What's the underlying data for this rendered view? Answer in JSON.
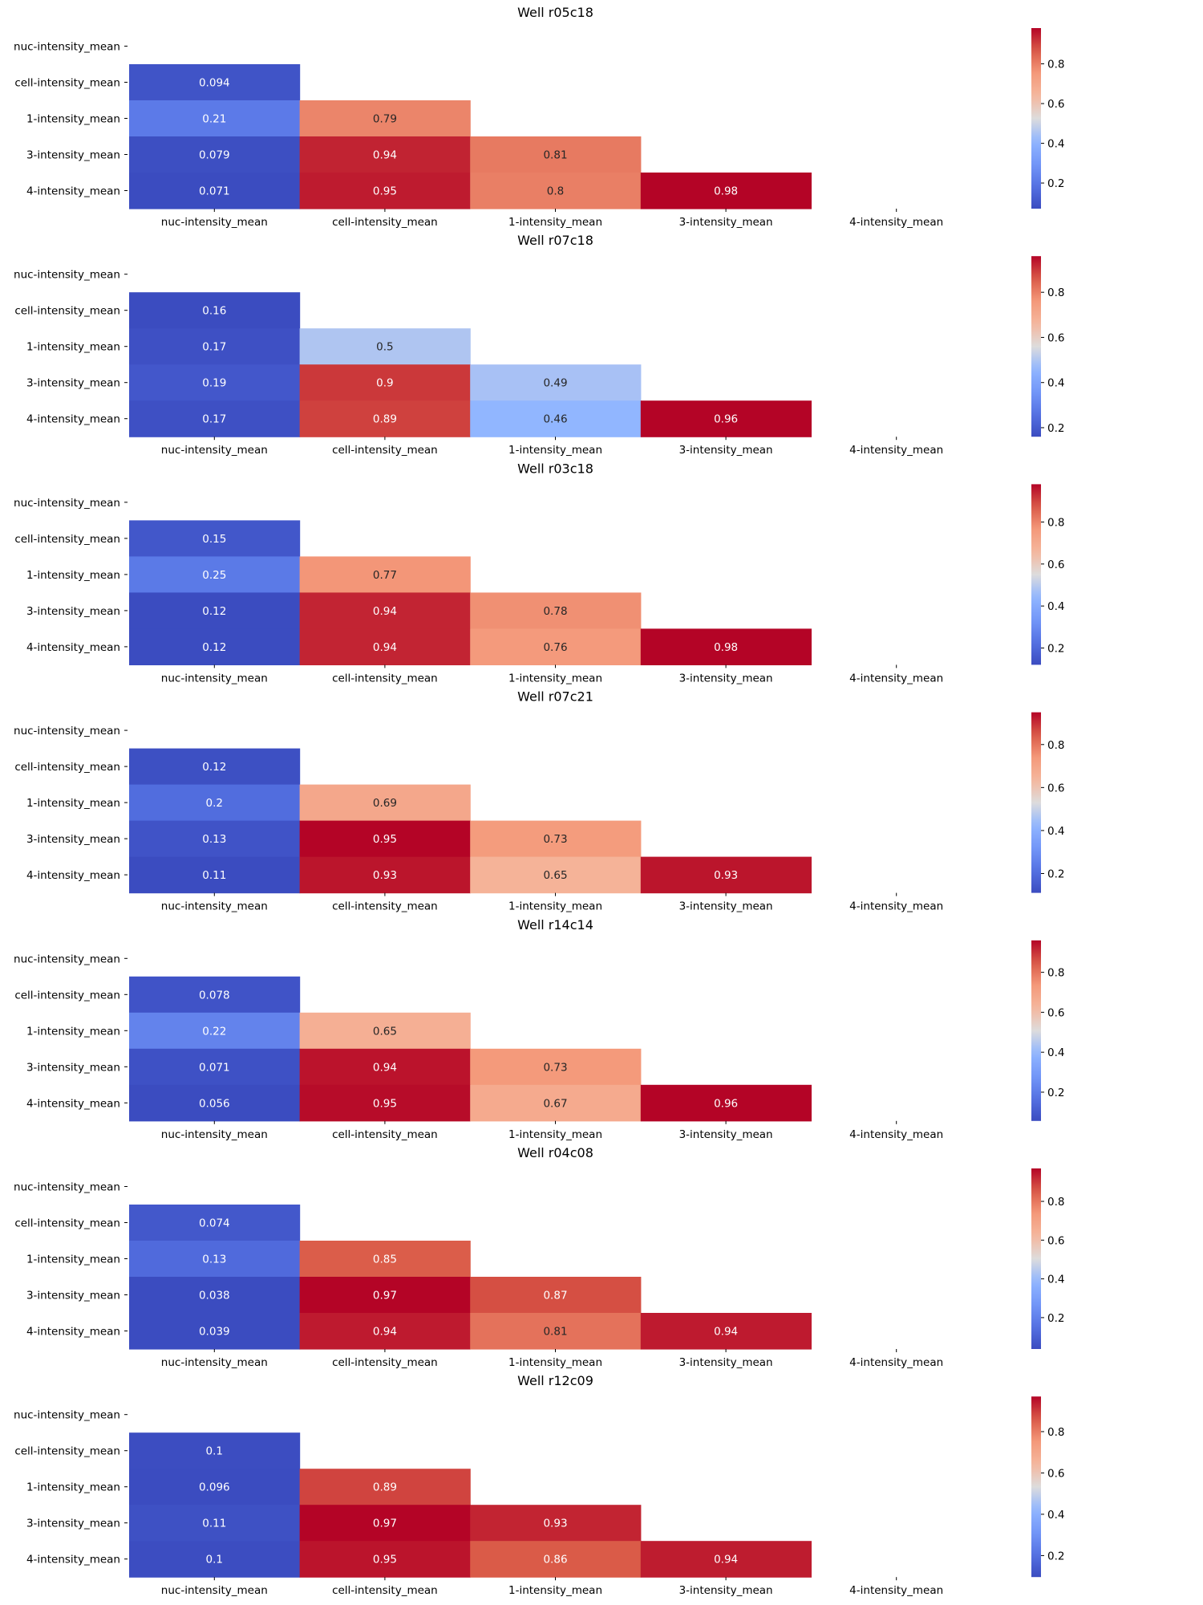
{
  "chart_data": [
    {
      "type": "heatmap",
      "title": "Well r05c18",
      "row_labels": [
        "nuc-intensity_mean",
        "cell-intensity_mean",
        "1-intensity_mean",
        "3-intensity_mean",
        "4-intensity_mean"
      ],
      "col_labels": [
        "nuc-intensity_mean",
        "cell-intensity_mean",
        "1-intensity_mean",
        "3-intensity_mean",
        "4-intensity_mean"
      ],
      "values": [
        [
          null,
          null,
          null,
          null,
          null
        ],
        [
          0.094,
          null,
          null,
          null,
          null
        ],
        [
          0.21,
          0.79,
          null,
          null,
          null
        ],
        [
          0.079,
          0.94,
          0.81,
          null,
          null
        ],
        [
          0.071,
          0.95,
          0.8,
          0.98,
          null
        ]
      ],
      "annotations": [
        [
          null,
          null,
          null,
          null,
          null
        ],
        [
          "0.094",
          null,
          null,
          null,
          null
        ],
        [
          "0.21",
          "0.79",
          null,
          null,
          null
        ],
        [
          "0.079",
          "0.94",
          "0.81",
          null,
          null
        ],
        [
          "0.071",
          "0.95",
          "0.8",
          "0.98",
          null
        ]
      ],
      "colorbar": {
        "colormap": "coolwarm",
        "range": [
          0.071,
          0.98
        ],
        "ticks": [
          0.2,
          0.4,
          0.6,
          0.8
        ],
        "tick_labels": [
          "0.2",
          "0.4",
          "0.6",
          "0.8"
        ]
      }
    },
    {
      "type": "heatmap",
      "title": "Well r07c18",
      "row_labels": [
        "nuc-intensity_mean",
        "cell-intensity_mean",
        "1-intensity_mean",
        "3-intensity_mean",
        "4-intensity_mean"
      ],
      "col_labels": [
        "nuc-intensity_mean",
        "cell-intensity_mean",
        "1-intensity_mean",
        "3-intensity_mean",
        "4-intensity_mean"
      ],
      "values": [
        [
          null,
          null,
          null,
          null,
          null
        ],
        [
          0.16,
          null,
          null,
          null,
          null
        ],
        [
          0.17,
          0.5,
          null,
          null,
          null
        ],
        [
          0.19,
          0.9,
          0.49,
          null,
          null
        ],
        [
          0.17,
          0.89,
          0.46,
          0.96,
          null
        ]
      ],
      "annotations": [
        [
          null,
          null,
          null,
          null,
          null
        ],
        [
          "0.16",
          null,
          null,
          null,
          null
        ],
        [
          "0.17",
          "0.5",
          null,
          null,
          null
        ],
        [
          "0.19",
          "0.9",
          "0.49",
          null,
          null
        ],
        [
          "0.17",
          "0.89",
          "0.46",
          "0.96",
          null
        ]
      ],
      "colorbar": {
        "colormap": "coolwarm",
        "range": [
          0.16,
          0.96
        ],
        "ticks": [
          0.2,
          0.4,
          0.6,
          0.8
        ],
        "tick_labels": [
          "0.2",
          "0.4",
          "0.6",
          "0.8"
        ]
      }
    },
    {
      "type": "heatmap",
      "title": "Well r03c18",
      "row_labels": [
        "nuc-intensity_mean",
        "cell-intensity_mean",
        "1-intensity_mean",
        "3-intensity_mean",
        "4-intensity_mean"
      ],
      "col_labels": [
        "nuc-intensity_mean",
        "cell-intensity_mean",
        "1-intensity_mean",
        "3-intensity_mean",
        "4-intensity_mean"
      ],
      "values": [
        [
          null,
          null,
          null,
          null,
          null
        ],
        [
          0.15,
          null,
          null,
          null,
          null
        ],
        [
          0.25,
          0.77,
          null,
          null,
          null
        ],
        [
          0.12,
          0.94,
          0.78,
          null,
          null
        ],
        [
          0.12,
          0.94,
          0.76,
          0.98,
          null
        ]
      ],
      "annotations": [
        [
          null,
          null,
          null,
          null,
          null
        ],
        [
          "0.15",
          null,
          null,
          null,
          null
        ],
        [
          "0.25",
          "0.77",
          null,
          null,
          null
        ],
        [
          "0.12",
          "0.94",
          "0.78",
          null,
          null
        ],
        [
          "0.12",
          "0.94",
          "0.76",
          "0.98",
          null
        ]
      ],
      "colorbar": {
        "colormap": "coolwarm",
        "range": [
          0.12,
          0.98
        ],
        "ticks": [
          0.2,
          0.4,
          0.6,
          0.8
        ],
        "tick_labels": [
          "0.2",
          "0.4",
          "0.6",
          "0.8"
        ]
      }
    },
    {
      "type": "heatmap",
      "title": "Well r07c21",
      "row_labels": [
        "nuc-intensity_mean",
        "cell-intensity_mean",
        "1-intensity_mean",
        "3-intensity_mean",
        "4-intensity_mean"
      ],
      "col_labels": [
        "nuc-intensity_mean",
        "cell-intensity_mean",
        "1-intensity_mean",
        "3-intensity_mean",
        "4-intensity_mean"
      ],
      "values": [
        [
          null,
          null,
          null,
          null,
          null
        ],
        [
          0.12,
          null,
          null,
          null,
          null
        ],
        [
          0.2,
          0.69,
          null,
          null,
          null
        ],
        [
          0.13,
          0.95,
          0.73,
          null,
          null
        ],
        [
          0.11,
          0.93,
          0.65,
          0.93,
          null
        ]
      ],
      "annotations": [
        [
          null,
          null,
          null,
          null,
          null
        ],
        [
          "0.12",
          null,
          null,
          null,
          null
        ],
        [
          "0.2",
          "0.69",
          null,
          null,
          null
        ],
        [
          "0.13",
          "0.95",
          "0.73",
          null,
          null
        ],
        [
          "0.11",
          "0.93",
          "0.65",
          "0.93",
          null
        ]
      ],
      "colorbar": {
        "colormap": "coolwarm",
        "range": [
          0.11,
          0.95
        ],
        "ticks": [
          0.2,
          0.4,
          0.6,
          0.8
        ],
        "tick_labels": [
          "0.2",
          "0.4",
          "0.6",
          "0.8"
        ]
      }
    },
    {
      "type": "heatmap",
      "title": "Well r14c14",
      "row_labels": [
        "nuc-intensity_mean",
        "cell-intensity_mean",
        "1-intensity_mean",
        "3-intensity_mean",
        "4-intensity_mean"
      ],
      "col_labels": [
        "nuc-intensity_mean",
        "cell-intensity_mean",
        "1-intensity_mean",
        "3-intensity_mean",
        "4-intensity_mean"
      ],
      "values": [
        [
          null,
          null,
          null,
          null,
          null
        ],
        [
          0.078,
          null,
          null,
          null,
          null
        ],
        [
          0.22,
          0.65,
          null,
          null,
          null
        ],
        [
          0.071,
          0.94,
          0.73,
          null,
          null
        ],
        [
          0.056,
          0.95,
          0.67,
          0.96,
          null
        ]
      ],
      "annotations": [
        [
          null,
          null,
          null,
          null,
          null
        ],
        [
          "0.078",
          null,
          null,
          null,
          null
        ],
        [
          "0.22",
          "0.65",
          null,
          null,
          null
        ],
        [
          "0.071",
          "0.94",
          "0.73",
          null,
          null
        ],
        [
          "0.056",
          "0.95",
          "0.67",
          "0.96",
          null
        ]
      ],
      "colorbar": {
        "colormap": "coolwarm",
        "range": [
          0.056,
          0.96
        ],
        "ticks": [
          0.2,
          0.4,
          0.6,
          0.8
        ],
        "tick_labels": [
          "0.2",
          "0.4",
          "0.6",
          "0.8"
        ]
      }
    },
    {
      "type": "heatmap",
      "title": "Well r04c08",
      "row_labels": [
        "nuc-intensity_mean",
        "cell-intensity_mean",
        "1-intensity_mean",
        "3-intensity_mean",
        "4-intensity_mean"
      ],
      "col_labels": [
        "nuc-intensity_mean",
        "cell-intensity_mean",
        "1-intensity_mean",
        "3-intensity_mean",
        "4-intensity_mean"
      ],
      "values": [
        [
          null,
          null,
          null,
          null,
          null
        ],
        [
          0.074,
          null,
          null,
          null,
          null
        ],
        [
          0.13,
          0.85,
          null,
          null,
          null
        ],
        [
          0.038,
          0.97,
          0.87,
          null,
          null
        ],
        [
          0.039,
          0.94,
          0.81,
          0.94,
          null
        ]
      ],
      "annotations": [
        [
          null,
          null,
          null,
          null,
          null
        ],
        [
          "0.074",
          null,
          null,
          null,
          null
        ],
        [
          "0.13",
          "0.85",
          null,
          null,
          null
        ],
        [
          "0.038",
          "0.97",
          "0.87",
          null,
          null
        ],
        [
          "0.039",
          "0.94",
          "0.81",
          "0.94",
          null
        ]
      ],
      "colorbar": {
        "colormap": "coolwarm",
        "range": [
          0.038,
          0.97
        ],
        "ticks": [
          0.2,
          0.4,
          0.6,
          0.8
        ],
        "tick_labels": [
          "0.2",
          "0.4",
          "0.6",
          "0.8"
        ]
      }
    },
    {
      "type": "heatmap",
      "title": "Well r12c09",
      "row_labels": [
        "nuc-intensity_mean",
        "cell-intensity_mean",
        "1-intensity_mean",
        "3-intensity_mean",
        "4-intensity_mean"
      ],
      "col_labels": [
        "nuc-intensity_mean",
        "cell-intensity_mean",
        "1-intensity_mean",
        "3-intensity_mean",
        "4-intensity_mean"
      ],
      "values": [
        [
          null,
          null,
          null,
          null,
          null
        ],
        [
          0.1,
          null,
          null,
          null,
          null
        ],
        [
          0.096,
          0.89,
          null,
          null,
          null
        ],
        [
          0.11,
          0.97,
          0.93,
          null,
          null
        ],
        [
          0.1,
          0.95,
          0.86,
          0.94,
          null
        ]
      ],
      "annotations": [
        [
          null,
          null,
          null,
          null,
          null
        ],
        [
          "0.1",
          null,
          null,
          null,
          null
        ],
        [
          "0.096",
          "0.89",
          null,
          null,
          null
        ],
        [
          "0.11",
          "0.97",
          "0.93",
          null,
          null
        ],
        [
          "0.1",
          "0.95",
          "0.86",
          "0.94",
          null
        ]
      ],
      "colorbar": {
        "colormap": "coolwarm",
        "range": [
          0.096,
          0.97
        ],
        "ticks": [
          0.2,
          0.4,
          0.6,
          0.8
        ],
        "tick_labels": [
          "0.2",
          "0.4",
          "0.6",
          "0.8"
        ]
      }
    }
  ]
}
